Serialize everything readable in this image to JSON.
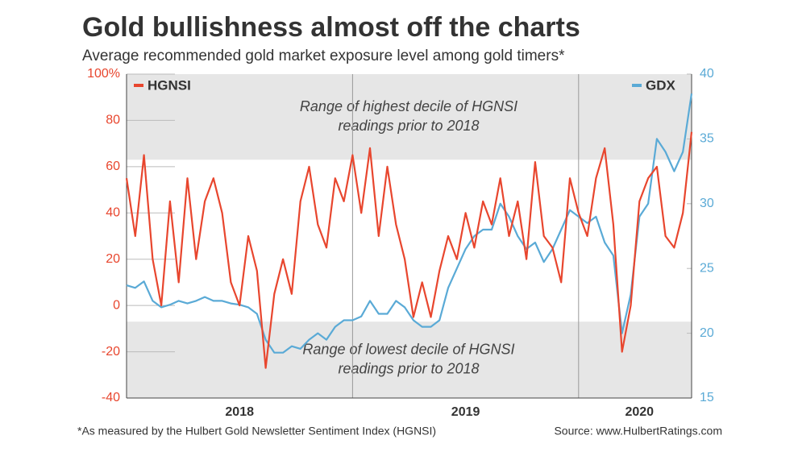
{
  "chart_data": {
    "type": "line",
    "title": "Gold bullishness almost off the charts",
    "subtitle": "Average recommended gold market exposure level among gold timers*",
    "footnote": "*As measured by the Hulbert Gold Newsletter Sentiment Index (HGNSI)",
    "source": "Source: www.HulbertRatings.com",
    "categories": [
      null,
      null,
      null,
      null,
      null,
      null,
      null,
      null,
      null,
      null,
      null,
      null,
      null,
      "2018",
      null,
      null,
      null,
      null,
      null,
      null,
      null,
      null,
      null,
      null,
      null,
      null,
      null,
      null,
      null,
      null,
      null,
      null,
      null,
      null,
      null,
      null,
      null,
      null,
      null,
      "2019",
      null,
      null,
      null,
      null,
      null,
      null,
      null,
      null,
      null,
      null,
      null,
      null,
      null,
      null,
      null,
      null,
      null,
      null,
      null,
      "2020",
      null,
      null,
      null,
      null,
      null,
      null
    ],
    "series": [
      {
        "name": "HGNSI",
        "color": "#e8462e",
        "axis": "y",
        "values": [
          55,
          30,
          65,
          20,
          0,
          45,
          10,
          55,
          20,
          45,
          55,
          40,
          10,
          0,
          30,
          15,
          -27,
          5,
          20,
          5,
          45,
          60,
          35,
          25,
          55,
          45,
          65,
          40,
          68,
          30,
          60,
          35,
          20,
          -5,
          10,
          -5,
          15,
          30,
          20,
          40,
          25,
          45,
          35,
          55,
          30,
          45,
          20,
          62,
          30,
          25,
          10,
          55,
          40,
          30,
          55,
          68,
          35,
          -20,
          0,
          45,
          55,
          60,
          30,
          25,
          40,
          75
        ]
      },
      {
        "name": "GDX",
        "color": "#5aaad6",
        "axis": "y2",
        "values": [
          23.7,
          23.5,
          24,
          22.5,
          22,
          22.2,
          22.5,
          22.3,
          22.5,
          22.8,
          22.5,
          22.5,
          22.3,
          22.2,
          22,
          21.5,
          19.5,
          18.5,
          18.5,
          19,
          18.8,
          19.5,
          20,
          19.5,
          20.5,
          21,
          21,
          21.3,
          22.5,
          21.5,
          21.5,
          22.5,
          22,
          21,
          20.5,
          20.5,
          21,
          23.5,
          25,
          26.5,
          27.5,
          28,
          28,
          30,
          29,
          27.5,
          26.5,
          27,
          25.5,
          26.5,
          28,
          29.5,
          29,
          28.5,
          29,
          27,
          26,
          20,
          23,
          29,
          30,
          35,
          34,
          32.5,
          34,
          38.5
        ]
      }
    ],
    "bands": [
      {
        "from": 63,
        "to": 100,
        "label": [
          "Range of highest decile of HGNSI",
          "readings prior to 2018"
        ]
      },
      {
        "from": -40,
        "to": -7,
        "label": [
          "Range of lowest decile of HGNSI",
          "readings prior to 2018"
        ]
      }
    ],
    "ylim": [
      -40,
      100
    ],
    "yticks": [
      -40,
      -20,
      0,
      20,
      40,
      60,
      80,
      {
        "value": 100,
        "label": "100%"
      }
    ],
    "y2lim": [
      15,
      40
    ],
    "y2ticks": [
      15,
      20,
      25,
      30,
      35,
      40
    ]
  }
}
